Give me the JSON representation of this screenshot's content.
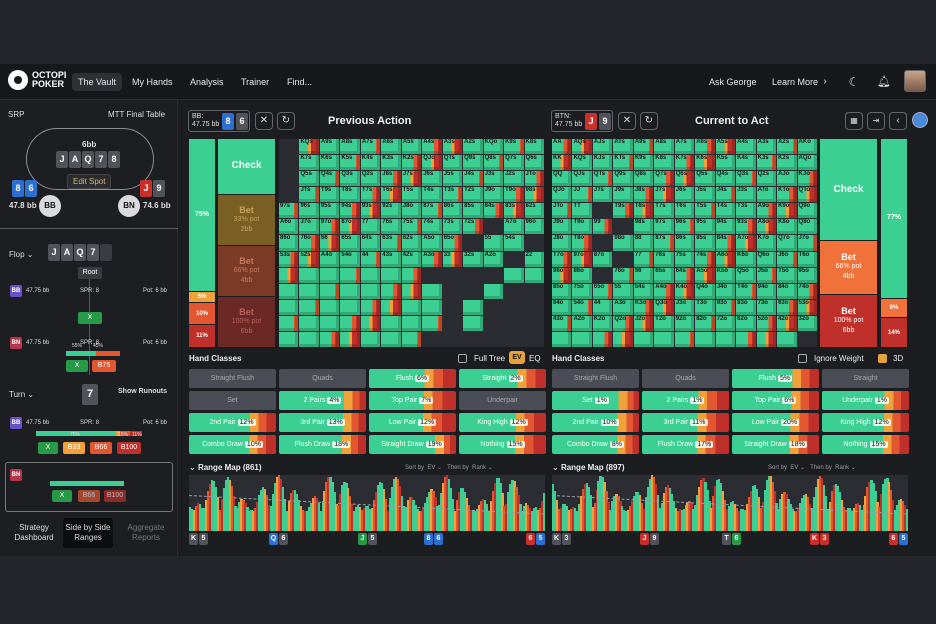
{
  "app": {
    "logo_line1": "OCTOPI",
    "logo_line2": "POKER"
  },
  "nav": [
    {
      "label": "The Vault",
      "active": true
    },
    {
      "label": "My Hands"
    },
    {
      "label": "Analysis"
    },
    {
      "label": "Trainer"
    },
    {
      "label": "Find..."
    }
  ],
  "top_right": {
    "ask": "Ask George",
    "learn": "Learn More",
    "learn_icon": "chevron-right-icon",
    "theme_icon": "moon-icon",
    "bell_icon": "bell-icon"
  },
  "sidebar": {
    "format": "SRP",
    "table_type": "MTT Final Table",
    "pot": "6bb",
    "board": [
      "J",
      "A",
      "Q",
      "7",
      "8"
    ],
    "edit_spot": "Edit Spot",
    "bb": {
      "name": "BB",
      "stack": "47.8",
      "unit": "bb",
      "cards": [
        "8",
        "6"
      ]
    },
    "bn": {
      "name": "BN",
      "stack": "74.6",
      "unit": "bb",
      "cards": [
        "J",
        "9"
      ]
    },
    "flop_label": "Flop",
    "flop_cards": [
      "J",
      "A",
      "Q",
      "7"
    ],
    "root_label": "Root",
    "node1": {
      "player": "BB",
      "stack": "47.75 bb",
      "spr": "SPR: 8",
      "pot": "Pot: 6 bb",
      "action": "X"
    },
    "node2": {
      "player": "BN",
      "stack": "47.75 bb",
      "spr": "SPR: 8",
      "pot": "Pot: 6 bb",
      "pct1": "55%",
      "pct2": "45%",
      "action": "X",
      "bet": "B75"
    },
    "turn_label": "Turn",
    "show_runouts": "Show Runouts",
    "turn_card": "7",
    "node3": {
      "player": "BB",
      "stack": "47.75 bb",
      "spr": "SPR: 8",
      "pot": "Pot: 6 bb",
      "pct1": "75%",
      "pct2": "15%",
      "pct3": "11%",
      "action": "X",
      "b1": "B33",
      "b2": "B66",
      "b3": "B100"
    },
    "node4": {
      "player": "BN",
      "action": "X",
      "b1": "B66",
      "b2": "B100"
    },
    "bottom_tabs": [
      {
        "label": "Strategy Dashboard"
      },
      {
        "label": "Side by Side Ranges",
        "active": true
      },
      {
        "label": "Aggregate Reports",
        "dim": true
      }
    ]
  },
  "left_panel": {
    "player": "BB:",
    "stack": "47.75 bb",
    "cards": [
      "8",
      "6"
    ],
    "title": "Previous Action",
    "strategy": [
      {
        "label": "Check",
        "pct": "75%",
        "color": "#3ccf93"
      },
      {
        "label": "Bet",
        "sub1": "33% pot",
        "sub2": "2bb",
        "pct": "5%",
        "color": "#f0a13a"
      },
      {
        "label": "Bet",
        "sub1": "66% pot",
        "sub2": "4bb",
        "pct": "10%",
        "color": "#e2572f"
      },
      {
        "label": "Bet",
        "sub1": "100% pot",
        "sub2": "6bb",
        "pct": "11%",
        "color": "#c0302b"
      }
    ],
    "hand_classes_title": "Hand Classes",
    "full_tree": "Full Tree",
    "ev": "EV",
    "eq": "EQ",
    "hand_classes": [
      {
        "label": "Straight Flush",
        "pct": ""
      },
      {
        "label": "Quads",
        "pct": ""
      },
      {
        "label": "Flush",
        "pct": "6%"
      },
      {
        "label": "Straight",
        "pct": "2%"
      },
      {
        "label": "Set",
        "pct": ""
      },
      {
        "label": "2 Pairs",
        "pct": "4%"
      },
      {
        "label": "Top Pair",
        "pct": "7%"
      },
      {
        "label": "Underpair",
        "pct": ""
      },
      {
        "label": "2nd Pair",
        "pct": "12%"
      },
      {
        "label": "3rd Pair",
        "pct": "13%"
      },
      {
        "label": "Low Pair",
        "pct": "12%"
      },
      {
        "label": "King High",
        "pct": "12%"
      },
      {
        "label": "Combo Draw",
        "pct": "10%"
      },
      {
        "label": "Flush Draw",
        "pct": "18%"
      },
      {
        "label": "Straight Draw",
        "pct": "19%"
      },
      {
        "label": "Nothing",
        "pct": "15%"
      }
    ],
    "range_map": "Range Map (861)",
    "sort_by": "Sort by",
    "sort_val": "EV",
    "then_by": "Then by",
    "then_val": "Rank",
    "axis": [
      [
        "K",
        "5"
      ],
      [
        "Q",
        "6"
      ],
      [
        "J",
        "5"
      ],
      [
        "8",
        "6"
      ],
      [
        "6",
        "5"
      ]
    ]
  },
  "right_panel": {
    "player": "BTN:",
    "stack": "47.75 bb",
    "cards": [
      "J",
      "9"
    ],
    "title": "Current to Act",
    "strategy": [
      {
        "label": "Check",
        "pct": "77%",
        "color": "#3ccf93"
      },
      {
        "label": "Bet",
        "sub1": "66% pot",
        "sub2": "4bb",
        "pct": "9%",
        "color": "#f0713a"
      },
      {
        "label": "Bet",
        "sub1": "100% pot",
        "sub2": "6bb",
        "pct": "14%",
        "color": "#c0302b"
      }
    ],
    "hand_classes_title": "Hand Classes",
    "ignore_weight": "Ignore Weight",
    "threed": "3D",
    "hand_classes": [
      {
        "label": "Straight Flush",
        "pct": ""
      },
      {
        "label": "Quads",
        "pct": ""
      },
      {
        "label": "Flush",
        "pct": "5%"
      },
      {
        "label": "Straight",
        "pct": ""
      },
      {
        "label": "Set",
        "pct": "1%"
      },
      {
        "label": "2 Pairs",
        "pct": "1%"
      },
      {
        "label": "Top Pair",
        "pct": "6%"
      },
      {
        "label": "Underpair",
        "pct": "1%"
      },
      {
        "label": "2nd Pair",
        "pct": "10%"
      },
      {
        "label": "3rd Pair",
        "pct": "11%"
      },
      {
        "label": "Low Pair",
        "pct": "20%"
      },
      {
        "label": "King High",
        "pct": "12%"
      },
      {
        "label": "Combo Draw",
        "pct": "8%"
      },
      {
        "label": "Flush Draw",
        "pct": "17%"
      },
      {
        "label": "Straight Draw",
        "pct": "18%"
      },
      {
        "label": "Nothing",
        "pct": "15%"
      }
    ],
    "range_map": "Range Map (897)",
    "sort_by": "Sort by",
    "sort_val": "EV",
    "then_by": "Then by",
    "then_val": "Rank",
    "axis": [
      [
        "K",
        "3"
      ],
      [
        "J",
        "9"
      ],
      [
        "T",
        "6"
      ],
      [
        "K",
        "3"
      ],
      [
        "6",
        "5"
      ]
    ]
  },
  "grid_labels_left": [
    "KQs",
    "A9s",
    "A8s",
    "A7s",
    "A6s",
    "A5s",
    "A4s",
    "A3s",
    "A2s",
    "KQo",
    "K9s",
    "K8s",
    "K7s",
    "K6s",
    "K5s",
    "K4s",
    "K3s",
    "K2s",
    "QJo",
    "QTs",
    "Q9s",
    "Q8s",
    "Q7s",
    "Q6s",
    "Q5s",
    "Q4s",
    "Q3s",
    "Q2s",
    "J8s",
    "J7s",
    "J6s",
    "J5s",
    "J4s",
    "J3s",
    "J2s",
    "JTo",
    "JTs",
    "T9s",
    "T8s",
    "T7s",
    "T6s",
    "T5s",
    "T4s",
    "T3s",
    "T2s",
    "J9o",
    "T9o",
    "98s",
    "97s",
    "96s",
    "95s",
    "94s",
    "93s",
    "92s",
    "J8o",
    "87s",
    "86s",
    "85s",
    "84s",
    "83s",
    "82s",
    "A6o",
    "J7o",
    "97o",
    "87o",
    "77",
    "76s",
    "75s",
    "74s",
    "73s",
    "72s",
    "A7o",
    "96o",
    "86o",
    "76o",
    "66",
    "65s",
    "64s",
    "63s",
    "62s",
    "A5o",
    "65o",
    "55",
    "54s",
    "53s",
    "52s",
    "A4o",
    "54o",
    "44",
    "43s",
    "42s",
    "A3o",
    "33",
    "32s",
    "A2o",
    "22"
  ],
  "grid_labels_right": [
    "AA",
    "AQs",
    "AJs",
    "ATs",
    "A9s",
    "A8s",
    "A7s",
    "A6s",
    "A5s",
    "A4s",
    "A3s",
    "A2s",
    "AKo",
    "KK",
    "KQs",
    "KJs",
    "KTs",
    "K9s",
    "K8s",
    "K7s",
    "K6s",
    "K5s",
    "K4s",
    "K3s",
    "K2s",
    "AQo",
    "QQ",
    "QJs",
    "QTs",
    "Q9s",
    "Q8s",
    "Q7s",
    "Q6s",
    "Q5s",
    "Q4s",
    "Q3s",
    "Q2s",
    "AJo",
    "KJo",
    "QJo",
    "JJ",
    "JTs",
    "J9s",
    "J8s",
    "J7s",
    "J6s",
    "J5s",
    "J4s",
    "J3s",
    "ATo",
    "KTo",
    "QTo",
    "JTo",
    "TT",
    "T9s",
    "T8s",
    "T7s",
    "T6s",
    "T5s",
    "T4s",
    "T3s",
    "A9o",
    "K9o",
    "Q9o",
    "J9o",
    "T9o",
    "99",
    "98s",
    "97s",
    "96s",
    "95s",
    "94s",
    "93s",
    "A8o",
    "K8o",
    "Q8o",
    "J8o",
    "T8o",
    "98o",
    "88",
    "87s",
    "86s",
    "85s",
    "84s",
    "A7o",
    "K7o",
    "Q7o",
    "J7o",
    "T7o",
    "97o",
    "87o",
    "77",
    "76s",
    "75s",
    "74s",
    "A6o",
    "K6o",
    "Q6o",
    "J6o",
    "T6o",
    "96o",
    "86o",
    "76o",
    "66",
    "65s",
    "64s",
    "A5o",
    "K5o",
    "Q5o",
    "J5o",
    "T5o",
    "95o",
    "85o",
    "75o",
    "65o",
    "55",
    "54s",
    "A4o",
    "K4o",
    "Q4o",
    "J4o",
    "T4o",
    "94o",
    "84o",
    "74o",
    "64o",
    "54o",
    "44",
    "A3o",
    "K3o",
    "Q3o",
    "J3o",
    "T3o",
    "93o",
    "83o",
    "73o",
    "63o",
    "53o",
    "43o",
    "A2o",
    "K2o",
    "Q2o",
    "J2o",
    "T2o",
    "92o",
    "82o",
    "72o",
    "62o",
    "52o",
    "42o",
    "32o"
  ],
  "colors": {
    "check": "#3ccf93",
    "bet_small": "#f0a13a",
    "bet_mid": "#e2572f",
    "bet_big": "#c0302b",
    "bg": "#1c1d21"
  }
}
